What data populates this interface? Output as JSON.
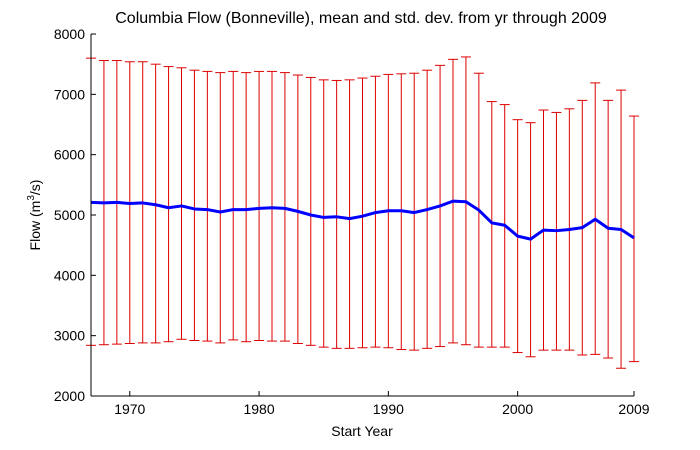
{
  "chart_data": {
    "type": "line",
    "title": "Columbia Flow (Bonneville), mean and std. dev. from yr through 2009",
    "xlabel": "Start Year",
    "ylabel_prefix": "Flow (m",
    "ylabel_sup": "3",
    "ylabel_suffix": "/s)",
    "xlim": [
      1967,
      2009
    ],
    "ylim": [
      2000,
      8000
    ],
    "x_ticks": [
      1970,
      1980,
      1990,
      2000,
      2009
    ],
    "y_ticks": [
      2000,
      3000,
      4000,
      5000,
      6000,
      7000,
      8000
    ],
    "grid": false,
    "colors": {
      "mean_line": "#0000ff",
      "error_bars": "#dd0000",
      "axes": "#000000"
    },
    "x": [
      1967,
      1968,
      1969,
      1970,
      1971,
      1972,
      1973,
      1974,
      1975,
      1976,
      1977,
      1978,
      1979,
      1980,
      1981,
      1982,
      1983,
      1984,
      1985,
      1986,
      1987,
      1988,
      1989,
      1990,
      1991,
      1992,
      1993,
      1994,
      1995,
      1996,
      1997,
      1998,
      1999,
      2000,
      2001,
      2002,
      2003,
      2004,
      2005,
      2006,
      2007,
      2008,
      2009
    ],
    "series": [
      {
        "values": [
          5210,
          5200,
          5210,
          5190,
          5200,
          5170,
          5120,
          5150,
          5100,
          5090,
          5050,
          5090,
          5090,
          5110,
          5120,
          5110,
          5060,
          5000,
          4960,
          4970,
          4940,
          4980,
          5040,
          5070,
          5070,
          5040,
          5090,
          5150,
          5230,
          5220,
          5080,
          4870,
          4830,
          4650,
          4600,
          4750,
          4740,
          4760,
          4790,
          4930,
          4780,
          4760,
          4620
        ],
        "upper": [
          7600,
          7560,
          7560,
          7540,
          7540,
          7500,
          7460,
          7440,
          7400,
          7380,
          7360,
          7380,
          7360,
          7380,
          7380,
          7360,
          7320,
          7280,
          7240,
          7230,
          7240,
          7270,
          7300,
          7330,
          7340,
          7350,
          7400,
          7480,
          7580,
          7620,
          7350,
          6880,
          6830,
          6580,
          6530,
          6740,
          6700,
          6760,
          6900,
          7190,
          6900,
          7070,
          6640
        ],
        "lower": [
          2840,
          2850,
          2860,
          2870,
          2880,
          2880,
          2900,
          2940,
          2920,
          2910,
          2880,
          2930,
          2900,
          2920,
          2910,
          2910,
          2870,
          2840,
          2810,
          2790,
          2790,
          2800,
          2810,
          2800,
          2770,
          2760,
          2790,
          2820,
          2880,
          2850,
          2810,
          2810,
          2810,
          2720,
          2650,
          2760,
          2760,
          2760,
          2680,
          2690,
          2630,
          2460,
          2570
        ]
      }
    ]
  }
}
